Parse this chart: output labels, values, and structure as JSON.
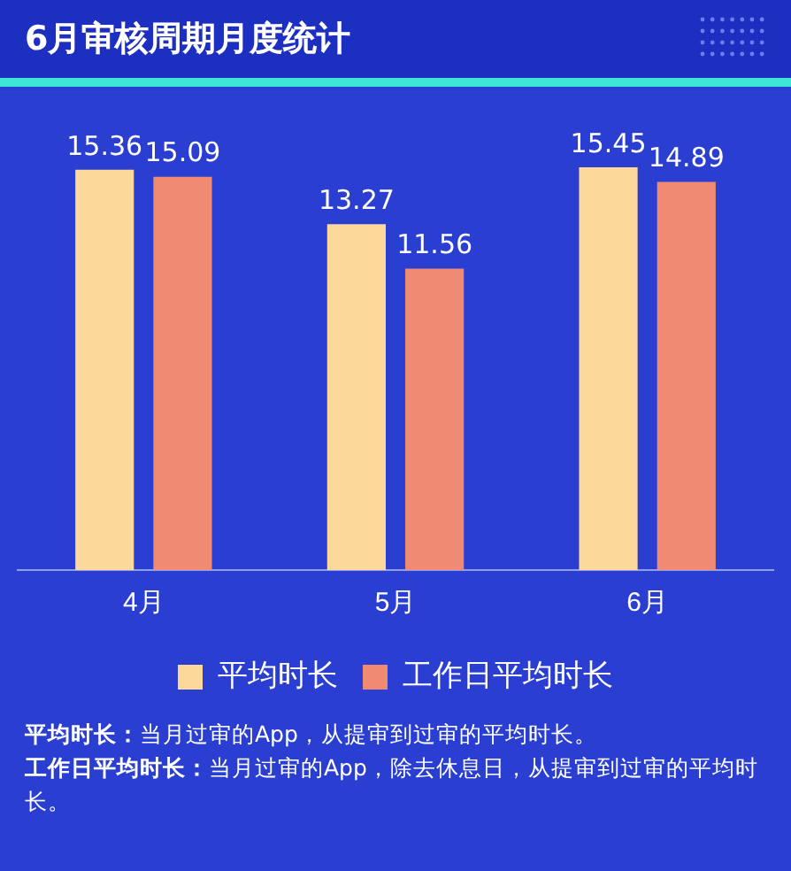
{
  "chart_data": {
    "type": "bar",
    "title": "6月审核周期月度统计",
    "categories": [
      "4月",
      "5月",
      "6月"
    ],
    "series": [
      {
        "name": "平均时长",
        "color": "#fdd89b",
        "values": [
          15.36,
          13.27,
          15.45
        ]
      },
      {
        "name": "工作日平均时长",
        "color": "#f08a72",
        "values": [
          15.09,
          11.56,
          14.89
        ]
      }
    ],
    "data_labels": true,
    "legend": "bottom",
    "grid": false,
    "annotations": [
      "平均时长：当月过审的App，从提审到过审的平均时长。",
      "工作日平均时长：当月过审的App，除去休息日，从提审到过审的平均时长。"
    ]
  }
}
